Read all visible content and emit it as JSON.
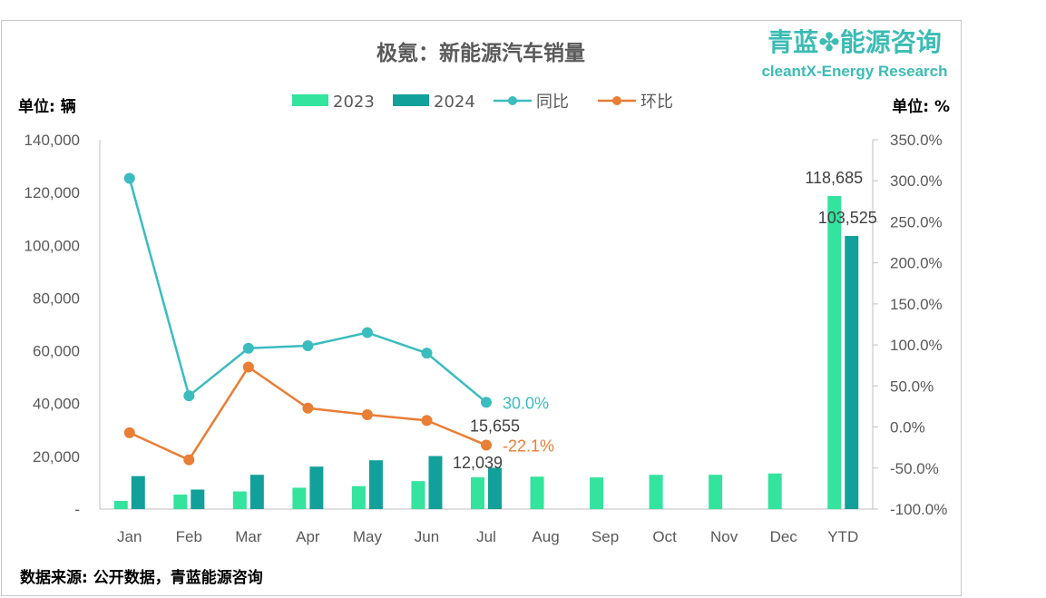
{
  "brand": {
    "cn": "青蓝✤能源咨询",
    "en": "cleantX-Energy Research",
    "color": "#3bbcb4"
  },
  "units": {
    "left": "单位: 辆",
    "right": "单位: %"
  },
  "source": "数据来源: 公开数据，青蓝能源咨询",
  "chart_data": {
    "type": "bar",
    "title": "极氪：新能源汽车销量",
    "categories": [
      "Jan",
      "Feb",
      "Mar",
      "Apr",
      "May",
      "Jun",
      "Jul",
      "Aug",
      "Sep",
      "Oct",
      "Nov",
      "Dec",
      "YTD"
    ],
    "ylim": [
      0,
      140000
    ],
    "y_ticks": [
      "-",
      "20,000",
      "40,000",
      "60,000",
      "80,000",
      "100,000",
      "120,000",
      "140,000"
    ],
    "y2lim": [
      -100,
      350
    ],
    "y2_ticks": [
      "-100.0%",
      "-50.0%",
      "0.0%",
      "50.0%",
      "100.0%",
      "150.0%",
      "200.0%",
      "250.0%",
      "300.0%",
      "350.0%"
    ],
    "legend_position": "top",
    "grid": false,
    "series": [
      {
        "name": "2023",
        "type": "bar",
        "axis": "left",
        "color": "#34e39d",
        "values": [
          3100,
          5500,
          6700,
          8100,
          8700,
          10600,
          12039,
          12300,
          12000,
          13000,
          13000,
          13500,
          118685
        ]
      },
      {
        "name": "2024",
        "type": "bar",
        "axis": "left",
        "color": "#12a09b",
        "values": [
          12500,
          7400,
          13000,
          16100,
          18500,
          20100,
          15655,
          null,
          null,
          null,
          null,
          null,
          103525
        ]
      },
      {
        "name": "同比",
        "type": "line",
        "axis": "right",
        "color": "#3bbcbf",
        "values": [
          303,
          38,
          96,
          99,
          115,
          90,
          30.0,
          null,
          null,
          null,
          null,
          null,
          null
        ]
      },
      {
        "name": "环比",
        "type": "line",
        "axis": "right",
        "color": "#e97e35",
        "values": [
          -7,
          -40,
          73,
          23,
          15,
          8,
          -22.1,
          null,
          null,
          null,
          null,
          null,
          null
        ]
      }
    ],
    "data_labels": [
      {
        "text": "30.0%",
        "series": "同比",
        "index": 6,
        "color": "#3bbcbf"
      },
      {
        "text": "-22.1%",
        "series": "环比",
        "index": 6,
        "color": "#e97e35"
      },
      {
        "text": "15,655",
        "series": "2024",
        "index": 6,
        "color": "#404040"
      },
      {
        "text": "12,039",
        "series": "2023",
        "index": 6,
        "color": "#404040"
      },
      {
        "text": "118,685",
        "series": "2023",
        "index": 12,
        "color": "#404040"
      },
      {
        "text": "103,525",
        "series": "2024",
        "index": 12,
        "color": "#404040"
      }
    ]
  }
}
